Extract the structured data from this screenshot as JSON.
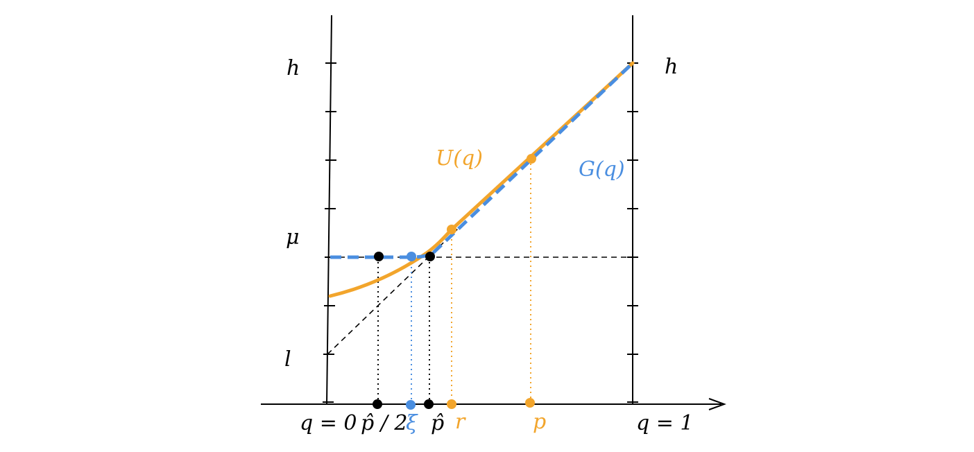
{
  "colors": {
    "axis": "#000000",
    "orange": "#f2a52c",
    "blue": "#4a8ee0",
    "background": "#ffffff"
  },
  "labels": {
    "y_left_top": "h",
    "y_left_mu": "μ",
    "y_left_low": "l",
    "y_right_top": "h",
    "curve_u": "U(q)",
    "curve_g": "G(q)",
    "x_q0": "q = 0",
    "x_phat_half": "p̂ / 2",
    "x_xi": "ξ",
    "x_phat": "p̂",
    "x_r": "r",
    "x_p": "p",
    "x_q1": "q = 1"
  }
}
